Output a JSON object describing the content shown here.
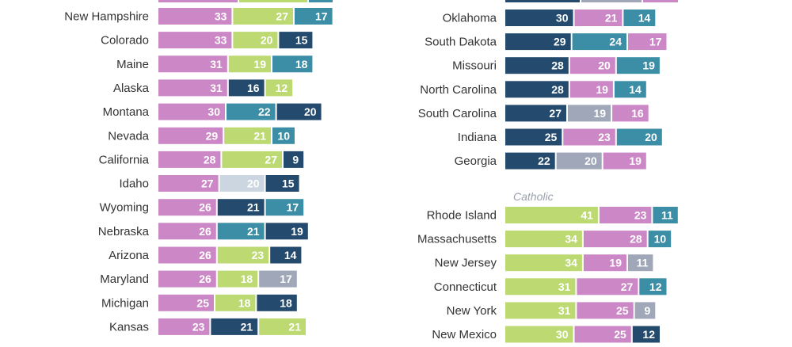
{
  "chart_data": {
    "type": "bar",
    "stacked": true,
    "colors": {
      "pink": "#cc88c6",
      "lime": "#bcd972",
      "teal": "#3b8ea6",
      "navy": "#244b6e",
      "gray": "#9fa7b8",
      "lightgray": "#ccd6e0"
    },
    "panels": [
      {
        "group_label": "",
        "rows": [
          {
            "state": "New Hampshire",
            "segments": [
              {
                "value": 33,
                "color": "pink"
              },
              {
                "value": 27,
                "color": "lime"
              },
              {
                "value": 17,
                "color": "teal"
              }
            ]
          },
          {
            "state": "Colorado",
            "segments": [
              {
                "value": 33,
                "color": "pink"
              },
              {
                "value": 20,
                "color": "lime"
              },
              {
                "value": 15,
                "color": "navy"
              }
            ]
          },
          {
            "state": "Maine",
            "segments": [
              {
                "value": 31,
                "color": "pink"
              },
              {
                "value": 19,
                "color": "lime"
              },
              {
                "value": 18,
                "color": "teal"
              }
            ]
          },
          {
            "state": "Alaska",
            "segments": [
              {
                "value": 31,
                "color": "pink"
              },
              {
                "value": 16,
                "color": "navy"
              },
              {
                "value": 12,
                "color": "lime"
              }
            ]
          },
          {
            "state": "Montana",
            "segments": [
              {
                "value": 30,
                "color": "pink"
              },
              {
                "value": 22,
                "color": "teal"
              },
              {
                "value": 20,
                "color": "navy"
              }
            ]
          },
          {
            "state": "Nevada",
            "segments": [
              {
                "value": 29,
                "color": "pink"
              },
              {
                "value": 21,
                "color": "lime"
              },
              {
                "value": 10,
                "color": "teal"
              }
            ]
          },
          {
            "state": "California",
            "segments": [
              {
                "value": 28,
                "color": "pink"
              },
              {
                "value": 27,
                "color": "lime"
              },
              {
                "value": 9,
                "color": "navy"
              }
            ]
          },
          {
            "state": "Idaho",
            "segments": [
              {
                "value": 27,
                "color": "pink"
              },
              {
                "value": 20,
                "color": "lightgray"
              },
              {
                "value": 15,
                "color": "navy"
              }
            ]
          },
          {
            "state": "Wyoming",
            "segments": [
              {
                "value": 26,
                "color": "pink"
              },
              {
                "value": 21,
                "color": "navy"
              },
              {
                "value": 17,
                "color": "teal"
              }
            ]
          },
          {
            "state": "Nebraska",
            "segments": [
              {
                "value": 26,
                "color": "pink"
              },
              {
                "value": 21,
                "color": "teal"
              },
              {
                "value": 19,
                "color": "navy"
              }
            ]
          },
          {
            "state": "Arizona",
            "segments": [
              {
                "value": 26,
                "color": "pink"
              },
              {
                "value": 23,
                "color": "lime"
              },
              {
                "value": 14,
                "color": "navy"
              }
            ]
          },
          {
            "state": "Maryland",
            "segments": [
              {
                "value": 26,
                "color": "pink"
              },
              {
                "value": 18,
                "color": "lime"
              },
              {
                "value": 17,
                "color": "gray"
              }
            ]
          },
          {
            "state": "Michigan",
            "segments": [
              {
                "value": 25,
                "color": "pink"
              },
              {
                "value": 18,
                "color": "lime"
              },
              {
                "value": 18,
                "color": "navy"
              }
            ]
          },
          {
            "state": "Kansas",
            "segments": [
              {
                "value": 23,
                "color": "pink"
              },
              {
                "value": 21,
                "color": "navy"
              },
              {
                "value": 21,
                "color": "lime"
              }
            ]
          }
        ]
      },
      {
        "group_label": "",
        "rows": [
          {
            "state": "Oklahoma",
            "segments": [
              {
                "value": 30,
                "color": "navy"
              },
              {
                "value": 21,
                "color": "pink"
              },
              {
                "value": 14,
                "color": "teal"
              }
            ]
          },
          {
            "state": "South Dakota",
            "segments": [
              {
                "value": 29,
                "color": "navy"
              },
              {
                "value": 24,
                "color": "teal"
              },
              {
                "value": 17,
                "color": "pink"
              }
            ]
          },
          {
            "state": "Missouri",
            "segments": [
              {
                "value": 28,
                "color": "navy"
              },
              {
                "value": 20,
                "color": "pink"
              },
              {
                "value": 19,
                "color": "teal"
              }
            ]
          },
          {
            "state": "North Carolina",
            "segments": [
              {
                "value": 28,
                "color": "navy"
              },
              {
                "value": 19,
                "color": "pink"
              },
              {
                "value": 14,
                "color": "teal"
              }
            ]
          },
          {
            "state": "South Carolina",
            "segments": [
              {
                "value": 27,
                "color": "navy"
              },
              {
                "value": 19,
                "color": "gray"
              },
              {
                "value": 16,
                "color": "pink"
              }
            ]
          },
          {
            "state": "Indiana",
            "segments": [
              {
                "value": 25,
                "color": "navy"
              },
              {
                "value": 23,
                "color": "pink"
              },
              {
                "value": 20,
                "color": "teal"
              }
            ]
          },
          {
            "state": "Georgia",
            "segments": [
              {
                "value": 22,
                "color": "navy"
              },
              {
                "value": 20,
                "color": "gray"
              },
              {
                "value": 19,
                "color": "pink"
              }
            ]
          }
        ]
      },
      {
        "group_label": "Catholic",
        "rows": [
          {
            "state": "Rhode Island",
            "segments": [
              {
                "value": 41,
                "color": "lime"
              },
              {
                "value": 23,
                "color": "pink"
              },
              {
                "value": 11,
                "color": "teal"
              }
            ]
          },
          {
            "state": "Massachusetts",
            "segments": [
              {
                "value": 34,
                "color": "lime"
              },
              {
                "value": 28,
                "color": "pink"
              },
              {
                "value": 10,
                "color": "teal"
              }
            ]
          },
          {
            "state": "New Jersey",
            "segments": [
              {
                "value": 34,
                "color": "lime"
              },
              {
                "value": 19,
                "color": "pink"
              },
              {
                "value": 11,
                "color": "gray"
              }
            ]
          },
          {
            "state": "Connecticut",
            "segments": [
              {
                "value": 31,
                "color": "lime"
              },
              {
                "value": 27,
                "color": "pink"
              },
              {
                "value": 12,
                "color": "teal"
              }
            ]
          },
          {
            "state": "New York",
            "segments": [
              {
                "value": 31,
                "color": "lime"
              },
              {
                "value": 25,
                "color": "pink"
              },
              {
                "value": 9,
                "color": "gray"
              }
            ]
          },
          {
            "state": "New Mexico",
            "segments": [
              {
                "value": 30,
                "color": "lime"
              },
              {
                "value": 25,
                "color": "pink"
              },
              {
                "value": 12,
                "color": "navy"
              }
            ]
          }
        ]
      }
    ]
  }
}
